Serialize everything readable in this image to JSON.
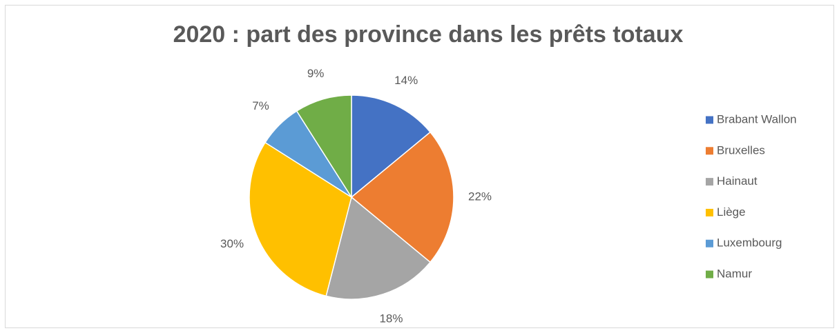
{
  "chart_data": {
    "type": "pie",
    "title": "2020 : part des province dans les prêts totaux",
    "categories": [
      "Brabant Wallon",
      "Bruxelles",
      "Hainaut",
      "Liège",
      "Luxembourg",
      "Namur"
    ],
    "values": [
      14,
      22,
      18,
      30,
      7,
      9
    ],
    "value_labels": [
      "14%",
      "22%",
      "18%",
      "30%",
      "7%",
      "9%"
    ],
    "colors": [
      "#4472c4",
      "#ed7d31",
      "#a5a5a5",
      "#ffc000",
      "#5b9bd5",
      "#70ad47"
    ],
    "legend": "right"
  }
}
